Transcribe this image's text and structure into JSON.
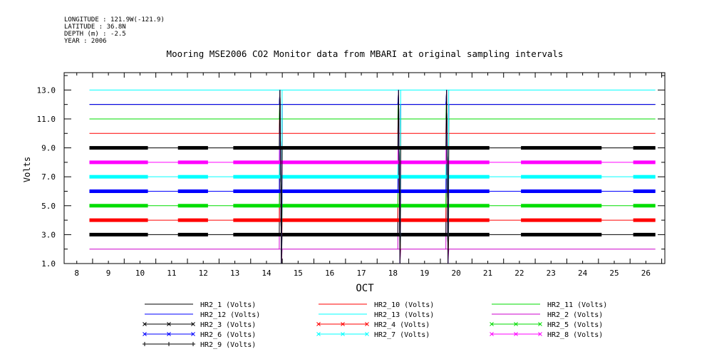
{
  "header": {
    "longitude": "LONGITUDE : 121.9W(-121.9)",
    "latitude": "LATITUDE : 36.8N",
    "depth": "DEPTH (m) : -2.5",
    "year": "YEAR : 2006"
  },
  "chart_data": {
    "type": "line",
    "title": "Mooring MSE2006 CO2 Monitor data from MBARI at original sampling intervals",
    "xlabel": "OCT",
    "ylabel": "Volts",
    "xlim": [
      7.6,
      26.6
    ],
    "ylim": [
      1.0,
      14.2
    ],
    "x_ticks": [
      "8",
      "9",
      "10",
      "11",
      "12",
      "13",
      "14",
      "15",
      "16",
      "17",
      "18",
      "19",
      "20",
      "21",
      "22",
      "23",
      "24",
      "25",
      "26"
    ],
    "y_ticks": [
      "1.0",
      "3.0",
      "5.0",
      "7.0",
      "9.0",
      "11.0",
      "13.0"
    ],
    "y_tick_values": [
      1,
      3,
      5,
      7,
      9,
      11,
      13
    ],
    "grid": false,
    "data_start": 8.4,
    "data_end": 26.3,
    "spikes": [
      14.45,
      18.2,
      19.72
    ],
    "gaps": [
      [
        10.25,
        11.2
      ],
      [
        12.15,
        12.95
      ],
      [
        21.05,
        22.05
      ],
      [
        24.6,
        25.6
      ]
    ],
    "series": [
      {
        "name": "HR2_1 (Volts)",
        "color": "#000000",
        "marker": "none",
        "value": 12.0,
        "legend_col": 0,
        "legend_row": 0
      },
      {
        "name": "HR2_10 (Volts)",
        "color": "#ff0000",
        "marker": "none",
        "value": 10.0,
        "legend_col": 1,
        "legend_row": 0
      },
      {
        "name": "HR2_11 (Volts)",
        "color": "#00dd00",
        "marker": "none",
        "value": 11.0,
        "legend_col": 2,
        "legend_row": 0
      },
      {
        "name": "HR2_12 (Volts)",
        "color": "#0000ff",
        "marker": "none",
        "value": 12.0,
        "legend_col": 0,
        "legend_row": 1
      },
      {
        "name": "HR2_13 (Volts)",
        "color": "#00ffff",
        "marker": "none",
        "value": 13.0,
        "legend_col": 1,
        "legend_row": 1
      },
      {
        "name": "HR2_2 (Volts)",
        "color": "#cc00cc",
        "marker": "none",
        "value": 2.0,
        "legend_col": 2,
        "legend_row": 1
      },
      {
        "name": "HR2_3 (Volts)",
        "color": "#000000",
        "marker": "x",
        "value": 3.0,
        "legend_col": 0,
        "legend_row": 2
      },
      {
        "name": "HR2_4 (Volts)",
        "color": "#ff0000",
        "marker": "x",
        "value": 4.0,
        "legend_col": 1,
        "legend_row": 2
      },
      {
        "name": "HR2_5 (Volts)",
        "color": "#00dd00",
        "marker": "x",
        "value": 5.0,
        "legend_col": 2,
        "legend_row": 2
      },
      {
        "name": "HR2_6 (Volts)",
        "color": "#0000ff",
        "marker": "x",
        "value": 6.0,
        "legend_col": 0,
        "legend_row": 3
      },
      {
        "name": "HR2_7 (Volts)",
        "color": "#00ffff",
        "marker": "x",
        "value": 7.0,
        "legend_col": 1,
        "legend_row": 3
      },
      {
        "name": "HR2_8 (Volts)",
        "color": "#ff00ff",
        "marker": "x",
        "value": 8.0,
        "legend_col": 2,
        "legend_row": 3
      },
      {
        "name": "HR2_9 (Volts)",
        "color": "#000000",
        "marker": "+",
        "value": 9.0,
        "legend_col": 0,
        "legend_row": 4
      }
    ]
  }
}
